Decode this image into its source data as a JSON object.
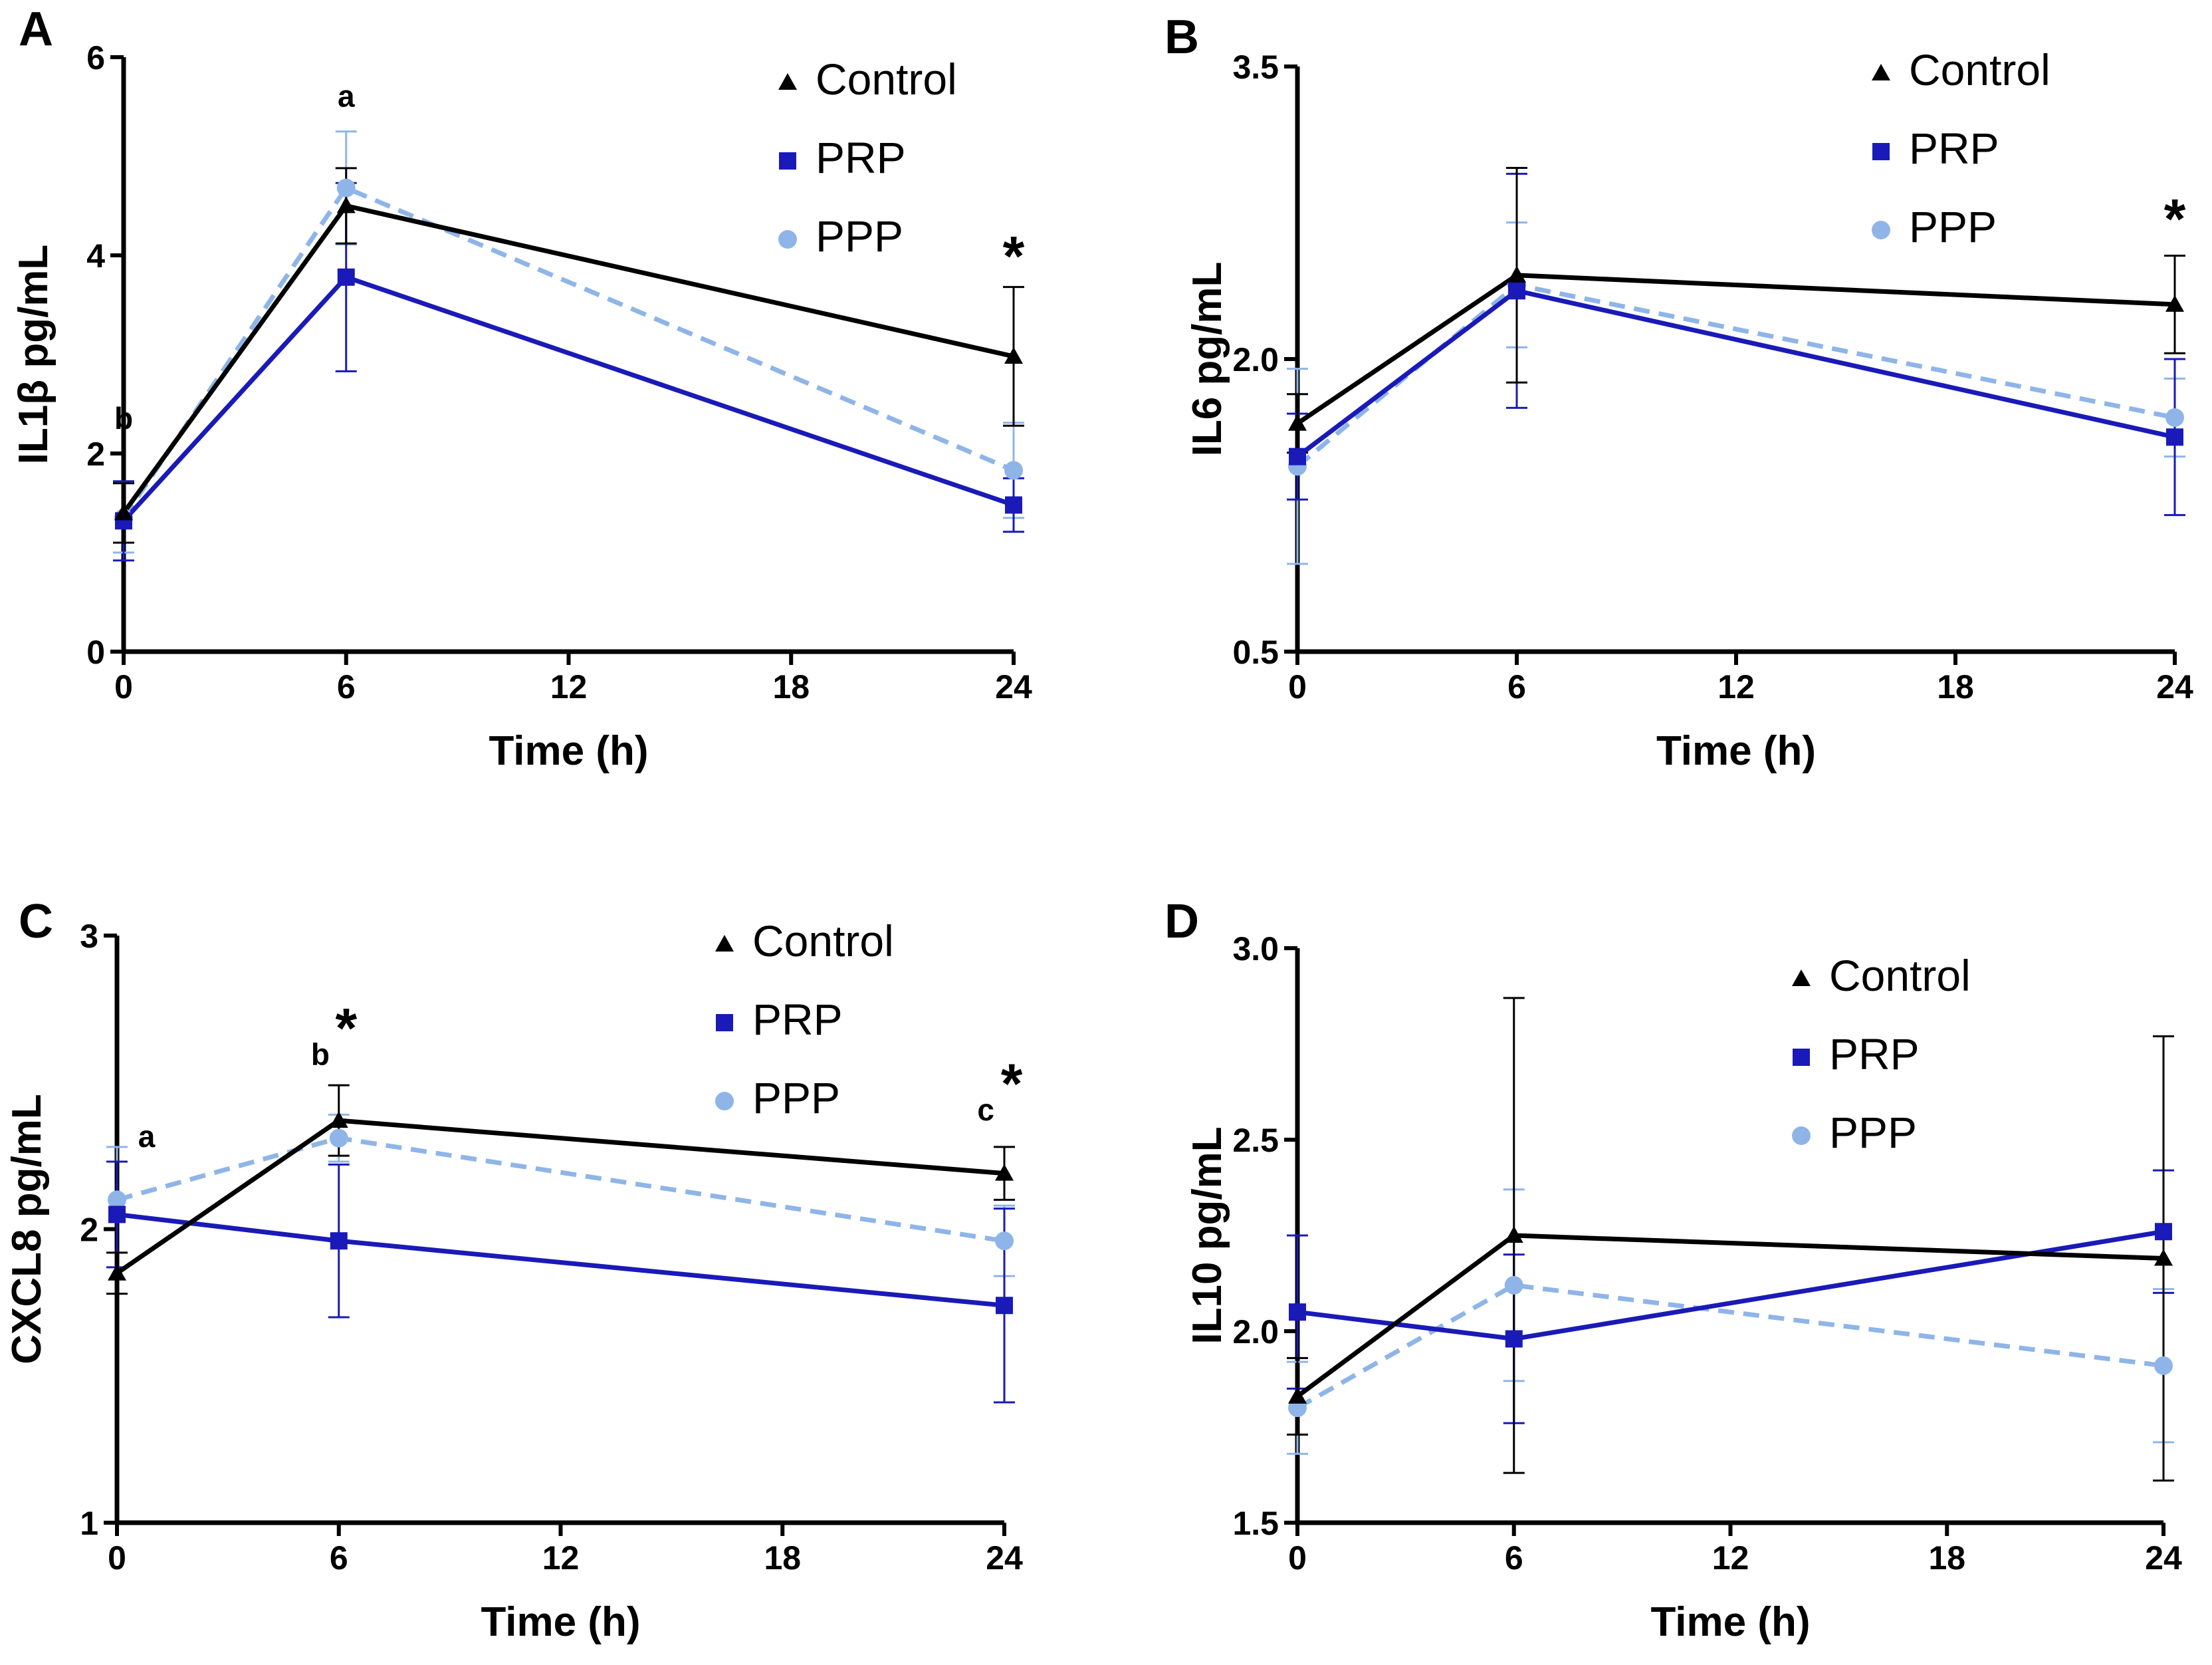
{
  "chart_data": [
    {
      "panel_label": "A",
      "type": "line",
      "title": "",
      "xlabel": "Time (h)",
      "ylabel": "IL1β pg/mL",
      "x": [
        0,
        6,
        24
      ],
      "xlim": [
        0,
        24
      ],
      "xticks": [
        0,
        6,
        12,
        18,
        24
      ],
      "ylim": [
        0,
        6
      ],
      "yticks": [
        0,
        2,
        4,
        6
      ],
      "ytick_labels": [
        "0",
        "2",
        "4",
        "6"
      ],
      "legend": {
        "position": "top-right",
        "entries": [
          "Control",
          "PRP",
          "PPP"
        ]
      },
      "series": [
        {
          "name": "Control",
          "marker": "triangle",
          "color": "#000000",
          "dash": false,
          "values": [
            1.4,
            4.5,
            2.98
          ],
          "errors": [
            0.3,
            0.38,
            0.7
          ]
        },
        {
          "name": "PRP",
          "marker": "square",
          "color": "#1a1ab8",
          "dash": false,
          "values": [
            1.32,
            3.78,
            1.48
          ],
          "errors": [
            0.4,
            0.95,
            0.27
          ]
        },
        {
          "name": "PPP",
          "marker": "circle",
          "color": "#8fb5e8",
          "dash": true,
          "values": [
            1.35,
            4.68,
            1.83
          ],
          "errors": [
            0.35,
            0.57,
            0.48
          ]
        }
      ],
      "annotations": [
        {
          "text": "b",
          "x": 0,
          "y": 2.25,
          "style": "letter"
        },
        {
          "text": "a",
          "x": 6,
          "y": 5.5,
          "style": "letter"
        },
        {
          "text": "*",
          "x": 24,
          "y": 3.8,
          "style": "star"
        }
      ]
    },
    {
      "panel_label": "B",
      "type": "line",
      "title": "",
      "xlabel": "Time (h)",
      "ylabel": "IL6 pg/mL",
      "x": [
        0,
        6,
        24
      ],
      "xlim": [
        0,
        24
      ],
      "xticks": [
        0,
        6,
        12,
        18,
        24
      ],
      "ylim": [
        0.5,
        3.5
      ],
      "yticks": [
        0.5,
        2.0,
        3.5
      ],
      "ytick_labels": [
        "0.5",
        "2.0",
        "3.5"
      ],
      "legend": {
        "position": "top-right",
        "entries": [
          "Control",
          "PRP",
          "PPP"
        ]
      },
      "series": [
        {
          "name": "Control",
          "marker": "triangle",
          "color": "#000000",
          "dash": false,
          "values": [
            1.67,
            2.43,
            2.28
          ],
          "errors": [
            0.15,
            0.55,
            0.25
          ]
        },
        {
          "name": "PRP",
          "marker": "square",
          "color": "#1a1ab8",
          "dash": false,
          "values": [
            1.5,
            2.35,
            1.6
          ],
          "errors": [
            0.22,
            0.6,
            0.4
          ]
        },
        {
          "name": "PPP",
          "marker": "circle",
          "color": "#8fb5e8",
          "dash": true,
          "values": [
            1.45,
            2.38,
            1.7
          ],
          "errors": [
            0.5,
            0.32,
            0.2
          ]
        }
      ],
      "annotations": [
        {
          "text": "*",
          "x": 24,
          "y": 2.62,
          "style": "star"
        }
      ]
    },
    {
      "panel_label": "C",
      "type": "line",
      "title": "",
      "xlabel": "Time (h)",
      "ylabel": "CXCL8 pg/mL",
      "x": [
        0,
        6,
        24
      ],
      "xlim": [
        0,
        24
      ],
      "xticks": [
        0,
        6,
        12,
        18,
        24
      ],
      "ylim": [
        1,
        3
      ],
      "yticks": [
        1,
        2,
        3
      ],
      "ytick_labels": [
        "1",
        "2",
        "3"
      ],
      "legend": {
        "position": "top-right",
        "entries": [
          "Control",
          "PRP",
          "PPP"
        ]
      },
      "series": [
        {
          "name": "Control",
          "marker": "triangle",
          "color": "#000000",
          "dash": false,
          "values": [
            1.85,
            2.37,
            2.19
          ],
          "errors": [
            0.07,
            0.12,
            0.09
          ]
        },
        {
          "name": "PRP",
          "marker": "square",
          "color": "#1a1ab8",
          "dash": false,
          "values": [
            2.05,
            1.96,
            1.74
          ],
          "errors": [
            0.18,
            0.26,
            0.33
          ]
        },
        {
          "name": "PPP",
          "marker": "circle",
          "color": "#8fb5e8",
          "dash": true,
          "values": [
            2.1,
            2.31,
            1.96
          ],
          "errors": [
            0.18,
            0.08,
            0.12
          ]
        }
      ],
      "annotations": [
        {
          "text": "a",
          "x": 0.8,
          "y": 2.28,
          "style": "letter"
        },
        {
          "text": "b",
          "x": 5.5,
          "y": 2.56,
          "style": "letter"
        },
        {
          "text": "*",
          "x": 6.2,
          "y": 2.62,
          "style": "star"
        },
        {
          "text": "c",
          "x": 23.5,
          "y": 2.37,
          "style": "letter"
        },
        {
          "text": "*",
          "x": 24.2,
          "y": 2.43,
          "style": "star"
        }
      ]
    },
    {
      "panel_label": "D",
      "type": "line",
      "title": "",
      "xlabel": "Time (h)",
      "ylabel": "IL10 pg/mL",
      "x": [
        0,
        6,
        24
      ],
      "xlim": [
        0,
        24
      ],
      "xticks": [
        0,
        6,
        12,
        18,
        24
      ],
      "ylim": [
        1.5,
        3.0
      ],
      "yticks": [
        1.5,
        2.0,
        2.5,
        3.0
      ],
      "ytick_labels": [
        "1.5",
        "2.0",
        "2.5",
        "3.0"
      ],
      "legend": {
        "position": "top-right",
        "entries": [
          "Control",
          "PRP",
          "PPP"
        ]
      },
      "series": [
        {
          "name": "Control",
          "marker": "triangle",
          "color": "#000000",
          "dash": false,
          "values": [
            1.83,
            2.25,
            2.19
          ],
          "errors": [
            0.1,
            0.62,
            0.58
          ]
        },
        {
          "name": "PRP",
          "marker": "square",
          "color": "#1a1ab8",
          "dash": false,
          "values": [
            2.05,
            1.98,
            2.26
          ],
          "errors": [
            0.2,
            0.22,
            0.16
          ]
        },
        {
          "name": "PPP",
          "marker": "circle",
          "color": "#8fb5e8",
          "dash": true,
          "values": [
            1.8,
            2.12,
            1.91
          ],
          "errors": [
            0.12,
            0.25,
            0.2
          ]
        }
      ],
      "annotations": []
    }
  ]
}
